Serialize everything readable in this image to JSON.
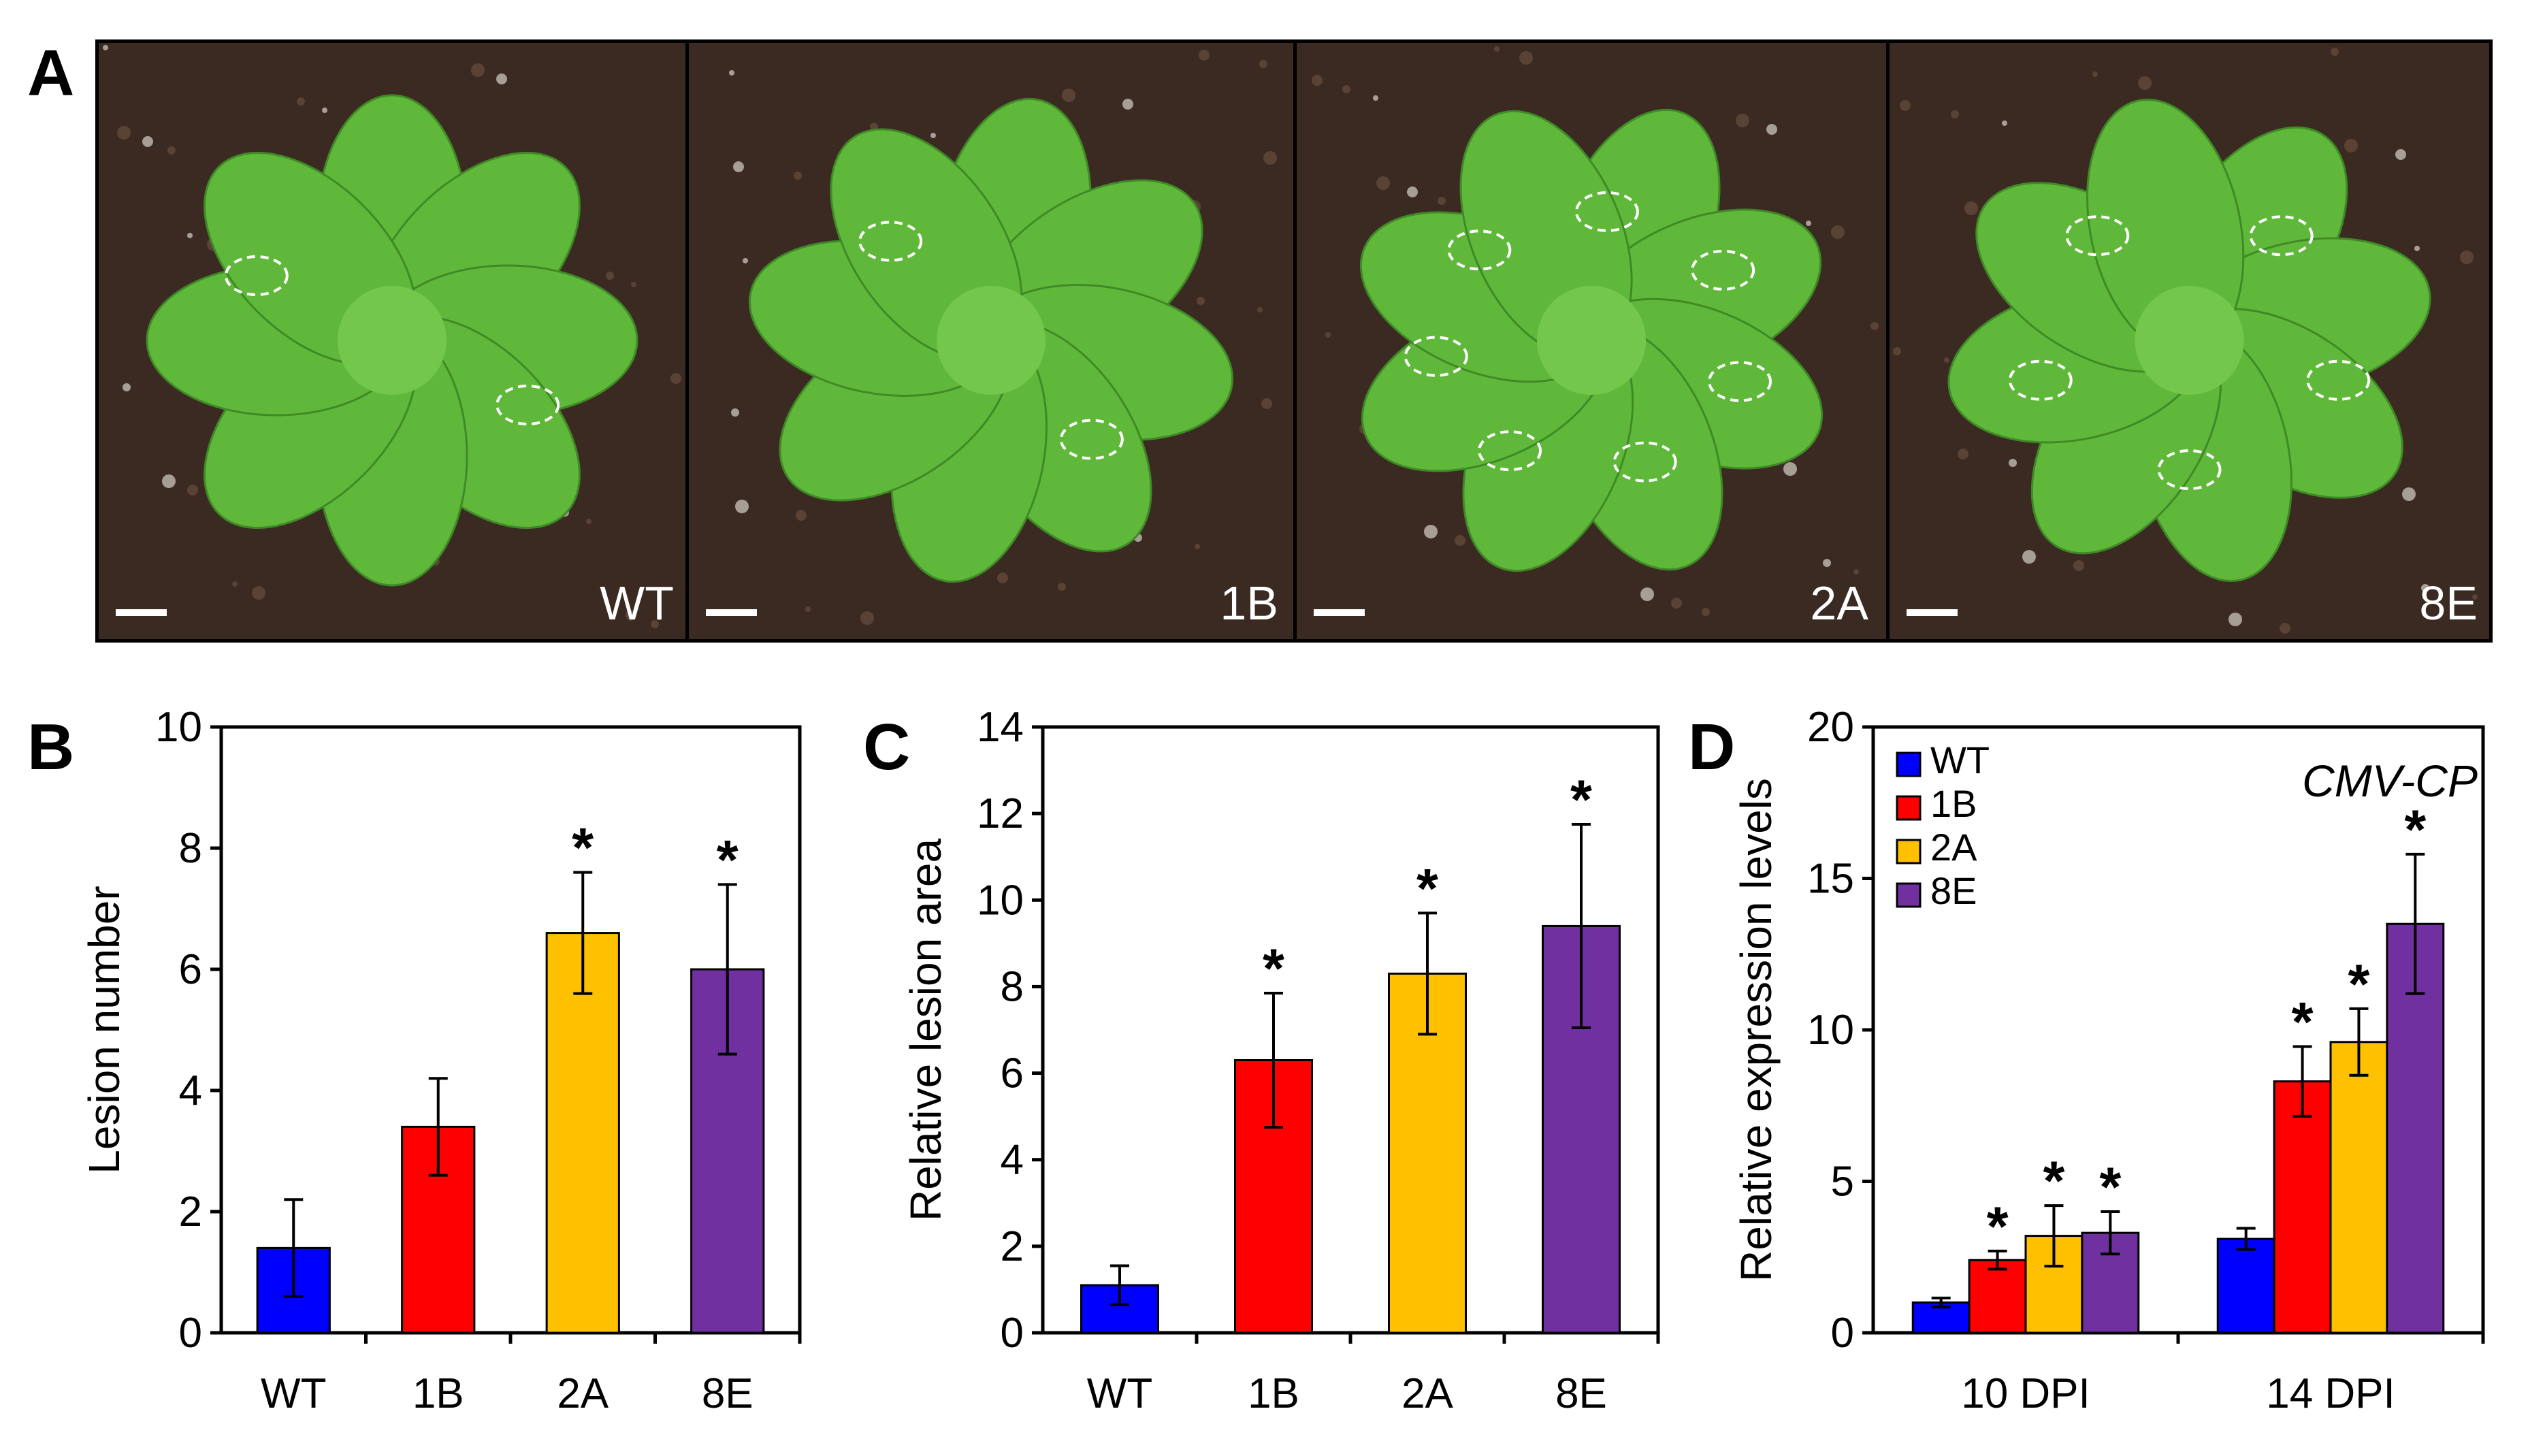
{
  "panels": {
    "a": {
      "letter": "A",
      "photos": [
        {
          "label": "WT",
          "lesions": 2
        },
        {
          "label": "1B",
          "lesions": 2
        },
        {
          "label": "2A",
          "lesions": 7
        },
        {
          "label": "8E",
          "lesions": 5
        }
      ]
    },
    "b": {
      "letter": "B"
    },
    "c": {
      "letter": "C"
    },
    "d": {
      "letter": "D",
      "gene_label": "CMV-CP"
    }
  },
  "colors": {
    "WT": "#0000ff",
    "1B": "#ff0000",
    "2A": "#ffc000",
    "8E": "#7030a0",
    "photo_background": "#3a2a22",
    "leaf": "#5fb83a"
  },
  "chart_data": [
    {
      "id": "B",
      "type": "bar",
      "categories": [
        "WT",
        "1B",
        "2A",
        "8E"
      ],
      "values": [
        1.4,
        3.4,
        6.6,
        6.0
      ],
      "errors": [
        0.8,
        0.8,
        1.0,
        1.4
      ],
      "significant": [
        false,
        false,
        true,
        true
      ],
      "ylabel": "Lesion number",
      "ylim": [
        0,
        10
      ],
      "yticks": [
        0,
        2,
        4,
        6,
        8,
        10
      ],
      "marker": "*"
    },
    {
      "id": "C",
      "type": "bar",
      "categories": [
        "WT",
        "1B",
        "2A",
        "8E"
      ],
      "values": [
        1.1,
        6.3,
        8.3,
        9.4
      ],
      "errors": [
        0.45,
        1.55,
        1.4,
        2.35
      ],
      "significant": [
        false,
        true,
        true,
        true
      ],
      "ylabel": "Relative lesion area",
      "ylim": [
        0,
        14
      ],
      "yticks": [
        0,
        2,
        4,
        6,
        8,
        10,
        12,
        14
      ],
      "marker": "*"
    },
    {
      "id": "D",
      "type": "bar",
      "categories": [
        "10 DPI",
        "14 DPI"
      ],
      "series": [
        {
          "name": "WT",
          "values": [
            1.0,
            3.1
          ],
          "errors": [
            0.15,
            0.35
          ],
          "significant": [
            false,
            false
          ]
        },
        {
          "name": "1B",
          "values": [
            2.4,
            8.3
          ],
          "errors": [
            0.3,
            1.15
          ],
          "significant": [
            true,
            true
          ]
        },
        {
          "name": "2A",
          "values": [
            3.2,
            9.6
          ],
          "errors": [
            1.0,
            1.1
          ],
          "significant": [
            true,
            true
          ]
        },
        {
          "name": "8E",
          "values": [
            3.3,
            13.5
          ],
          "errors": [
            0.7,
            2.3
          ],
          "significant": [
            true,
            true
          ]
        }
      ],
      "ylabel": "Relative expression levels",
      "ylim": [
        0,
        20
      ],
      "yticks": [
        0,
        5,
        10,
        15,
        20
      ],
      "legend": "top-left",
      "marker": "*"
    }
  ]
}
